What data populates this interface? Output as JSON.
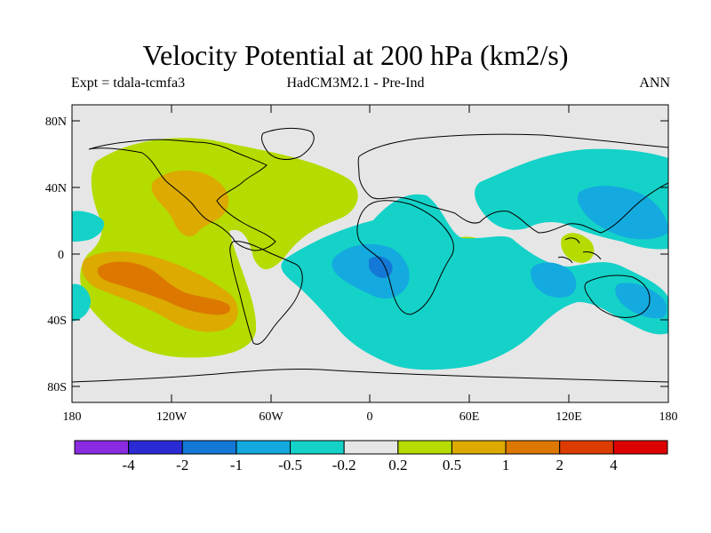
{
  "header": {
    "title": "Velocity Potential at 200 hPa (km2/s)",
    "expt": "Expt = tdala-tcmfa3",
    "model": "HadCM3M2.1 - Pre-Ind",
    "season": "ANN"
  },
  "map": {
    "projection": "cylindrical equidistant",
    "lon_range": [
      -180,
      180
    ],
    "lat_range": [
      -90,
      90
    ],
    "lat_labels": [
      "80N",
      "40N",
      "0",
      "40S",
      "80S"
    ],
    "lon_labels": [
      "180",
      "120W",
      "60W",
      "0",
      "60E",
      "120E",
      "180"
    ],
    "background_color": "#e6e6e6"
  },
  "colorbar": {
    "labels": [
      "-4",
      "-2",
      "-1",
      "-0.5",
      "-0.2",
      "0.2",
      "0.5",
      "1",
      "2",
      "4"
    ],
    "colors": [
      "#8a2be2",
      "#2b2bd6",
      "#1478d6",
      "#14aadf",
      "#14d2c8",
      "#e6e6e6",
      "#b4dc00",
      "#dcaa00",
      "#dc7800",
      "#dc3c00",
      "#dc0000"
    ]
  }
}
